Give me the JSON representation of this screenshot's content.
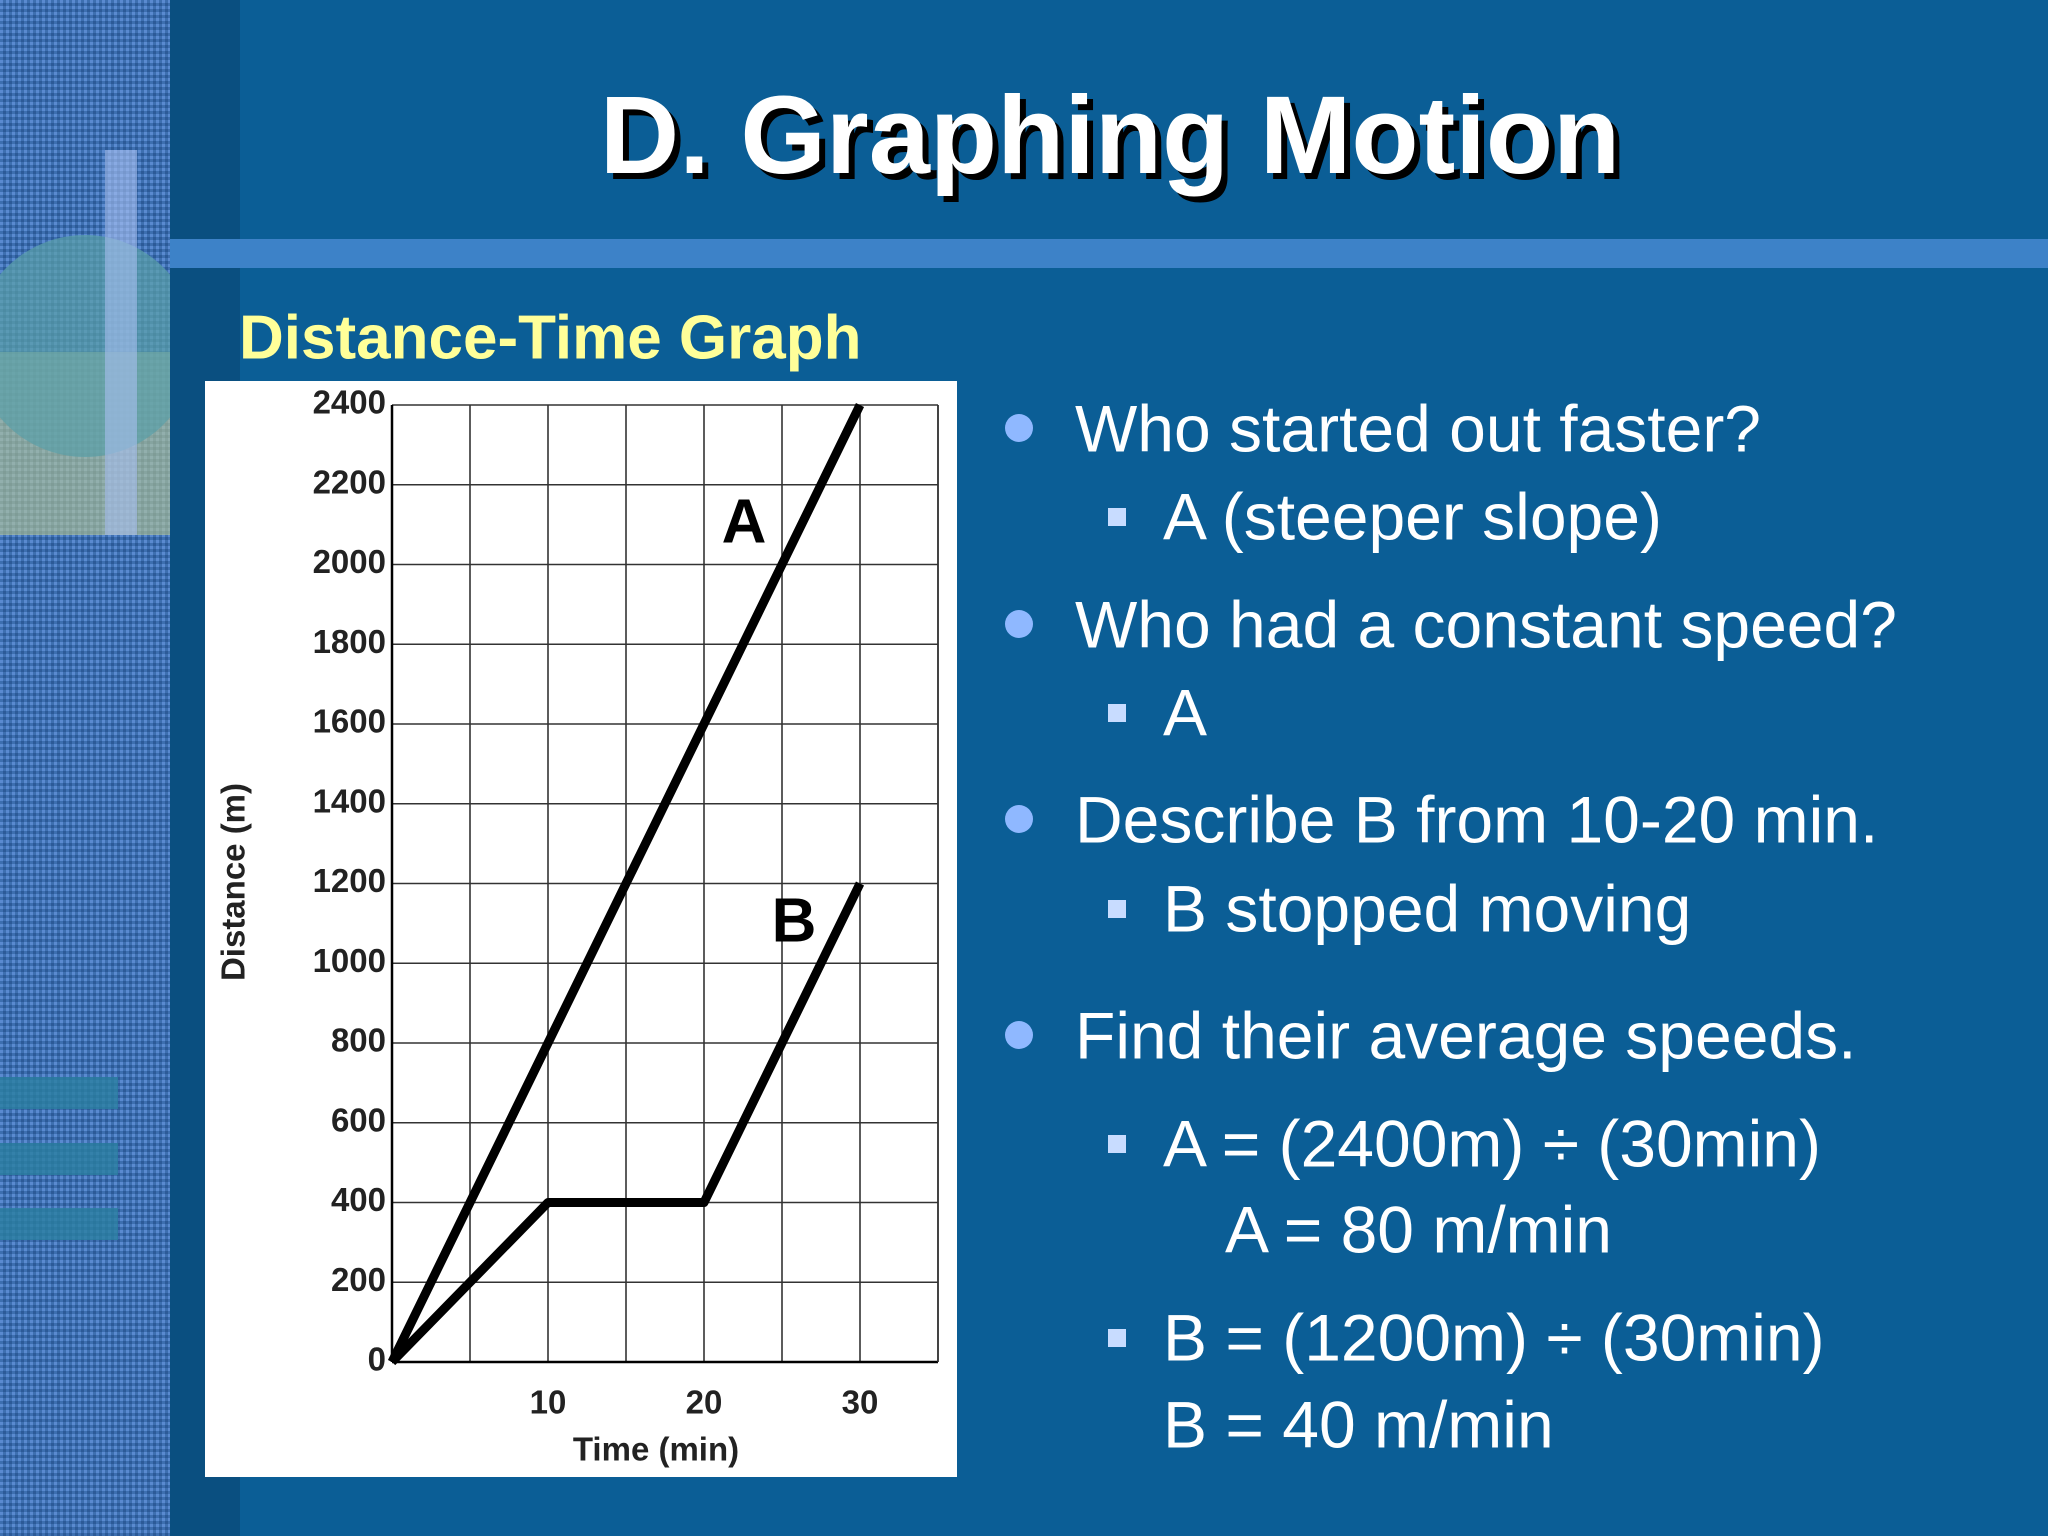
{
  "title": "D. Graphing Motion",
  "chart_data": {
    "type": "line",
    "title": "Distance-Time Graph",
    "x_label": "Time (min)",
    "y_label": "Distance (m)",
    "x": [
      0,
      10,
      20,
      30
    ],
    "series": [
      {
        "name": "A",
        "color": "#000000",
        "values": [
          0,
          800,
          1600,
          2400
        ]
      },
      {
        "name": "B",
        "color": "#000000",
        "values": [
          0,
          400,
          400,
          1200
        ]
      }
    ],
    "xlim": [
      0,
      35
    ],
    "xticks": [
      10,
      20,
      30
    ],
    "ylim": [
      0,
      2400
    ],
    "yticks": [
      0,
      200,
      400,
      600,
      800,
      1000,
      1200,
      1400,
      1600,
      1800,
      2000,
      2200,
      2400
    ],
    "grid": true
  },
  "bullets": [
    {
      "text": "Who started out faster?",
      "sub": [
        "A (steeper slope)"
      ]
    },
    {
      "text": "Who had a constant speed?",
      "sub": [
        "A"
      ]
    },
    {
      "text": "Describe B from 10-20 min.",
      "sub": [
        "B stopped moving"
      ]
    },
    {
      "text": "Find their average speeds.",
      "sub": [
        "A = (2400m) ÷ (30min)",
        "A = 80 m/min",
        "B = (1200m) ÷ (30min)",
        "B = 40 m/min"
      ]
    }
  ]
}
